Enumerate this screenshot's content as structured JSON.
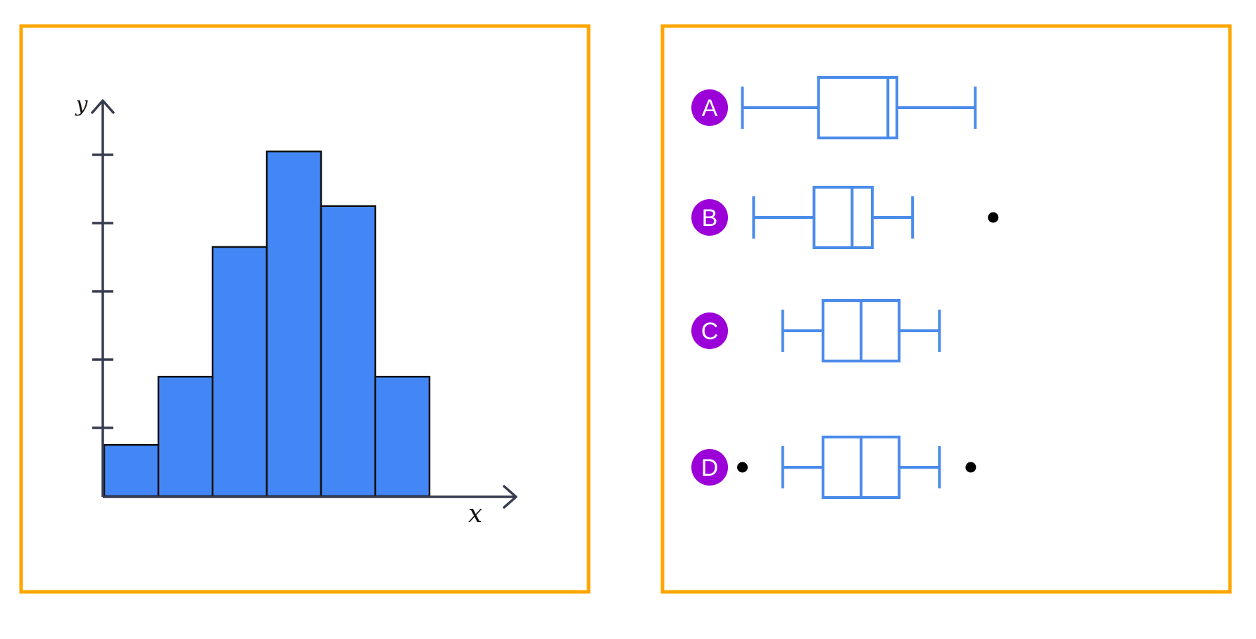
{
  "colors": {
    "panel_border": "#FFA500",
    "bar_fill": "#4287F5",
    "bar_stroke": "#111111",
    "axis": "#363B4F",
    "box_stroke": "#4A8BEA",
    "badge_fill": "#9B00D9",
    "outlier": "#000000"
  },
  "chart_data": [
    {
      "type": "bar",
      "subtype": "histogram",
      "xlabel": "x",
      "ylabel": "y",
      "values": [
        0.75,
        1.75,
        3.65,
        5.05,
        4.25,
        1.75
      ],
      "ylim": [
        0,
        6
      ],
      "y_ticks": [
        1,
        2,
        3,
        4,
        5
      ],
      "grid": false
    },
    {
      "type": "boxplot",
      "orientation": "horizontal",
      "xlim": [
        0,
        100
      ],
      "boxes": [
        {
          "label": "A",
          "whisker_low": 7,
          "q1": 24,
          "median": 39.5,
          "q3": 41.5,
          "whisker_high": 59,
          "outliers": []
        },
        {
          "label": "B",
          "whisker_low": 9.5,
          "q1": 23,
          "median": 31.5,
          "q3": 36,
          "whisker_high": 45,
          "outliers": [
            63
          ]
        },
        {
          "label": "C",
          "whisker_low": 16,
          "q1": 25,
          "median": 33.5,
          "q3": 42,
          "whisker_high": 51,
          "outliers": []
        },
        {
          "label": "D",
          "whisker_low": 16,
          "q1": 25,
          "median": 33.5,
          "q3": 42,
          "whisker_high": 51,
          "outliers": [
            7,
            58
          ]
        }
      ]
    }
  ]
}
